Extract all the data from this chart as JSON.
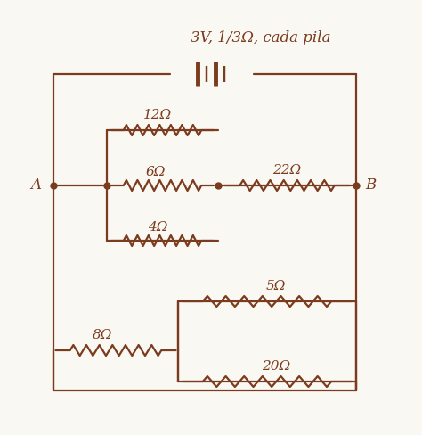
{
  "bg_color": "#faf8f3",
  "line_color": "#7a3b1e",
  "text_color": "#7a3b1e",
  "title": "3V, 1/3Ω, cada pila",
  "label_A": "A",
  "label_B": "B",
  "R12": "12Ω",
  "R6": "6Ω",
  "R4": "4Ω",
  "R22": "22Ω",
  "R5": "5Ω",
  "R8": "8Ω",
  "R20": "20Ω"
}
